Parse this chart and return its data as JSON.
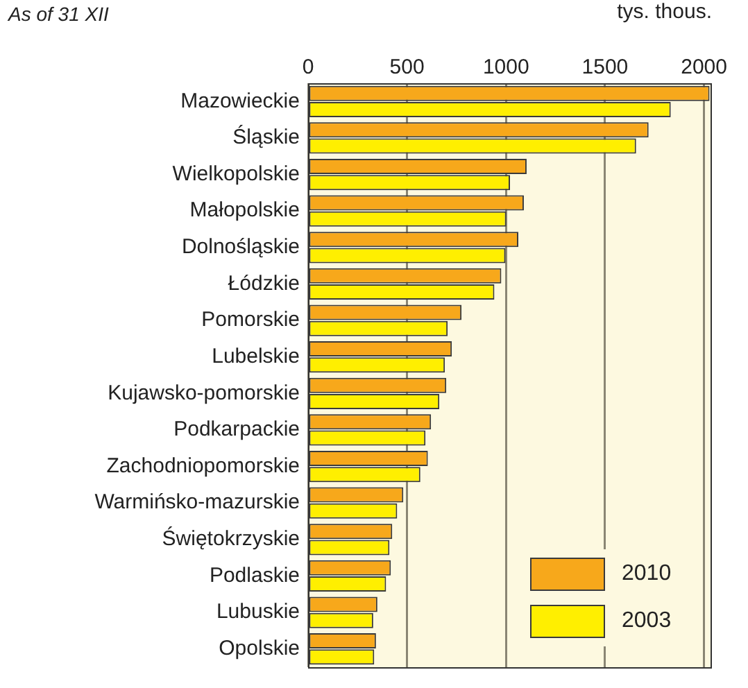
{
  "chart_data": {
    "type": "bar",
    "orientation": "horizontal",
    "xlabel": "tys. thous.",
    "annotations": [
      "As of 31 XII"
    ],
    "categories": [
      "Mazowieckie",
      "Śląskie",
      "Wielkopolskie",
      "Małopolskie",
      "Dolnośląskie",
      "Łódzkie",
      "Pomorskie",
      "Lubelskie",
      "Kujawsko-pomorskie",
      "Podkarpackie",
      "Zachodniopomorskie",
      "Warmińsko-mazurskie",
      "Świętokrzyskie",
      "Podlaskie",
      "Lubuskie",
      "Opolskie"
    ],
    "series": [
      {
        "name": "2010",
        "color": "#f7a81b",
        "values": [
          2028,
          1720,
          1104,
          1090,
          1062,
          976,
          775,
          726,
          698,
          621,
          605,
          481,
          425,
          418,
          350,
          343
        ]
      },
      {
        "name": "2003",
        "color": "#ffef00",
        "values": [
          1832,
          1657,
          1020,
          1001,
          997,
          941,
          705,
          691,
          663,
          593,
          567,
          450,
          411,
          394,
          329,
          334
        ]
      }
    ],
    "xlim": [
      0,
      2040
    ],
    "xticks": [
      0,
      500,
      1000,
      1500,
      2000
    ],
    "grid": "x",
    "legend": "bottom right"
  }
}
